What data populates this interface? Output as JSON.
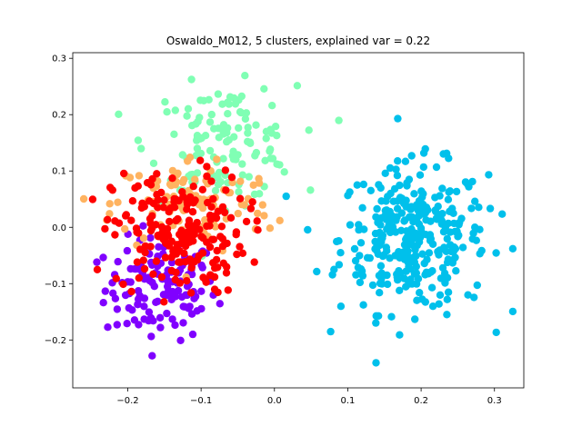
{
  "chart_data": {
    "type": "scatter",
    "title": "Oswaldo_M012, 5 clusters, explained var = 0.22",
    "xlabel": "",
    "ylabel": "",
    "xlim": [
      -0.275,
      0.34
    ],
    "ylim": [
      -0.285,
      0.31
    ],
    "x_ticks": [
      -0.2,
      -0.1,
      0.0,
      0.1,
      0.2,
      0.3
    ],
    "x_tick_labels": [
      "−0.2",
      "−0.1",
      "0.0",
      "0.1",
      "0.2",
      "0.3"
    ],
    "y_ticks": [
      -0.2,
      -0.1,
      0.0,
      0.1,
      0.2,
      0.3
    ],
    "y_tick_labels": [
      "−0.2",
      "−0.1",
      "0.0",
      "0.1",
      "0.2",
      "0.3"
    ],
    "grid": false,
    "legend": "none",
    "clusters": [
      {
        "color": "#8000ff",
        "center": [
          -0.155,
          -0.11
        ],
        "spread": [
          0.038,
          0.045
        ],
        "count": 130
      },
      {
        "color": "#00c0eb",
        "center": [
          0.19,
          -0.02
        ],
        "spread": [
          0.05,
          0.065
        ],
        "count": 330
      },
      {
        "color": "#80ffb4",
        "center": [
          -0.07,
          0.15
        ],
        "spread": [
          0.05,
          0.05
        ],
        "count": 130
      },
      {
        "color": "#ffb360",
        "center": [
          -0.11,
          0.04
        ],
        "spread": [
          0.055,
          0.045
        ],
        "count": 110
      },
      {
        "color": "#ff0000",
        "center": [
          -0.13,
          -0.01
        ],
        "spread": [
          0.045,
          0.055
        ],
        "count": 200
      }
    ]
  }
}
